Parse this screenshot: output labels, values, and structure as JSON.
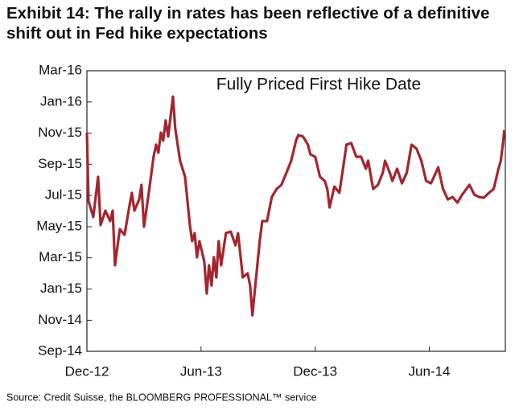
{
  "chart_data": {
    "type": "line",
    "title": "Exhibit 14: The rally in rates has been reflective of a definitive shift out in Fed hike expectations",
    "annotation": "Fully Priced First Hike Date",
    "source": "Source: Credit Suisse, the BLOOMBERG PROFESSIONAL™ service",
    "grid": false,
    "xlim": [
      2012.917,
      2014.75
    ],
    "xticks": [
      {
        "value": 2012.917,
        "label": "Dec-12"
      },
      {
        "value": 2013.417,
        "label": "Jun-13"
      },
      {
        "value": 2013.917,
        "label": "Dec-13"
      },
      {
        "value": 2014.417,
        "label": "Jun-14"
      }
    ],
    "ylim": [
      2014.667,
      2016.167
    ],
    "yticks": [
      {
        "value": 2014.667,
        "label": "Sep-14"
      },
      {
        "value": 2014.833,
        "label": "Nov-14"
      },
      {
        "value": 2015.0,
        "label": "Jan-15"
      },
      {
        "value": 2015.167,
        "label": "Mar-15"
      },
      {
        "value": 2015.333,
        "label": "May-15"
      },
      {
        "value": 2015.5,
        "label": "Jul-15"
      },
      {
        "value": 2015.667,
        "label": "Sep-15"
      },
      {
        "value": 2015.833,
        "label": "Nov-15"
      },
      {
        "value": 2016.0,
        "label": "Jan-16"
      },
      {
        "value": 2016.167,
        "label": "Mar-16"
      }
    ],
    "x": [
      2012.917,
      2012.924,
      2012.945,
      2012.966,
      2012.977,
      2012.998,
      2013.019,
      2013.03,
      2013.04,
      2013.061,
      2013.082,
      2013.104,
      2013.114,
      2013.125,
      2013.146,
      2013.156,
      2013.167,
      2013.188,
      2013.209,
      2013.22,
      2013.23,
      2013.241,
      2013.251,
      2013.262,
      2013.273,
      2013.294,
      2013.304,
      2013.325,
      2013.347,
      2013.368,
      2013.378,
      2013.389,
      2013.399,
      2013.41,
      2013.431,
      2013.442,
      2013.452,
      2013.463,
      2013.473,
      2013.484,
      2013.494,
      2013.505,
      2013.526,
      2013.547,
      2013.568,
      2013.579,
      2013.6,
      2013.621,
      2013.632,
      2013.642,
      2013.653,
      2013.674,
      2013.685,
      2013.706,
      2013.727,
      2013.748,
      2013.769,
      2013.791,
      2013.812,
      2013.833,
      2013.843,
      2013.864,
      2013.885,
      2013.896,
      2013.917,
      2013.938,
      2013.959,
      2013.97,
      2013.98,
      2014.001,
      2014.023,
      2014.044,
      2014.054,
      2014.075,
      2014.097,
      2014.118,
      2014.139,
      2014.149,
      2014.171,
      2014.192,
      2014.213,
      2014.223,
      2014.244,
      2014.255,
      2014.276,
      2014.297,
      2014.318,
      2014.339,
      2014.361,
      2014.382,
      2014.403,
      2014.424,
      2014.445,
      2014.456,
      2014.477,
      2014.498,
      2014.519,
      2014.54,
      2014.561,
      2014.593,
      2014.614,
      2014.635,
      2014.656,
      2014.678,
      2014.699,
      2014.72,
      2014.73,
      2014.741,
      2014.745
    ],
    "series": [
      {
        "color": "#a3262f",
        "values": [
          2015.836,
          2015.471,
          2015.385,
          2015.6,
          2015.342,
          2015.419,
          2015.363,
          2015.419,
          2015.127,
          2015.32,
          2015.29,
          2015.449,
          2015.514,
          2015.419,
          2015.479,
          2015.557,
          2015.333,
          2015.514,
          2015.707,
          2015.772,
          2015.729,
          2015.836,
          2015.793,
          2015.901,
          2015.815,
          2016.029,
          2015.858,
          2015.686,
          2015.6,
          2015.342,
          2015.256,
          2015.299,
          2015.17,
          2015.256,
          2015.148,
          2014.976,
          2015.127,
          2015.019,
          2015.17,
          2015.062,
          2015.256,
          2015.127,
          2015.299,
          2015.307,
          2015.234,
          2015.299,
          2015.062,
          2015.084,
          2015.019,
          2014.86,
          2014.998,
          2015.256,
          2015.363,
          2015.363,
          2015.492,
          2015.535,
          2015.557,
          2015.621,
          2015.686,
          2015.793,
          2015.823,
          2015.815,
          2015.772,
          2015.72,
          2015.707,
          2015.6,
          2015.578,
          2015.535,
          2015.436,
          2015.548,
          2015.514,
          2015.686,
          2015.772,
          2015.78,
          2015.707,
          2015.707,
          2015.643,
          2015.686,
          2015.535,
          2015.557,
          2015.621,
          2015.686,
          2015.621,
          2015.578,
          2015.643,
          2015.565,
          2015.621,
          2015.772,
          2015.75,
          2015.686,
          2015.578,
          2015.565,
          2015.621,
          2015.651,
          2015.535,
          2015.479,
          2015.492,
          2015.462,
          2015.505,
          2015.557,
          2015.505,
          2015.492,
          2015.488,
          2015.514,
          2015.535,
          2015.643,
          2015.686,
          2015.793,
          2015.849
        ]
      }
    ]
  }
}
